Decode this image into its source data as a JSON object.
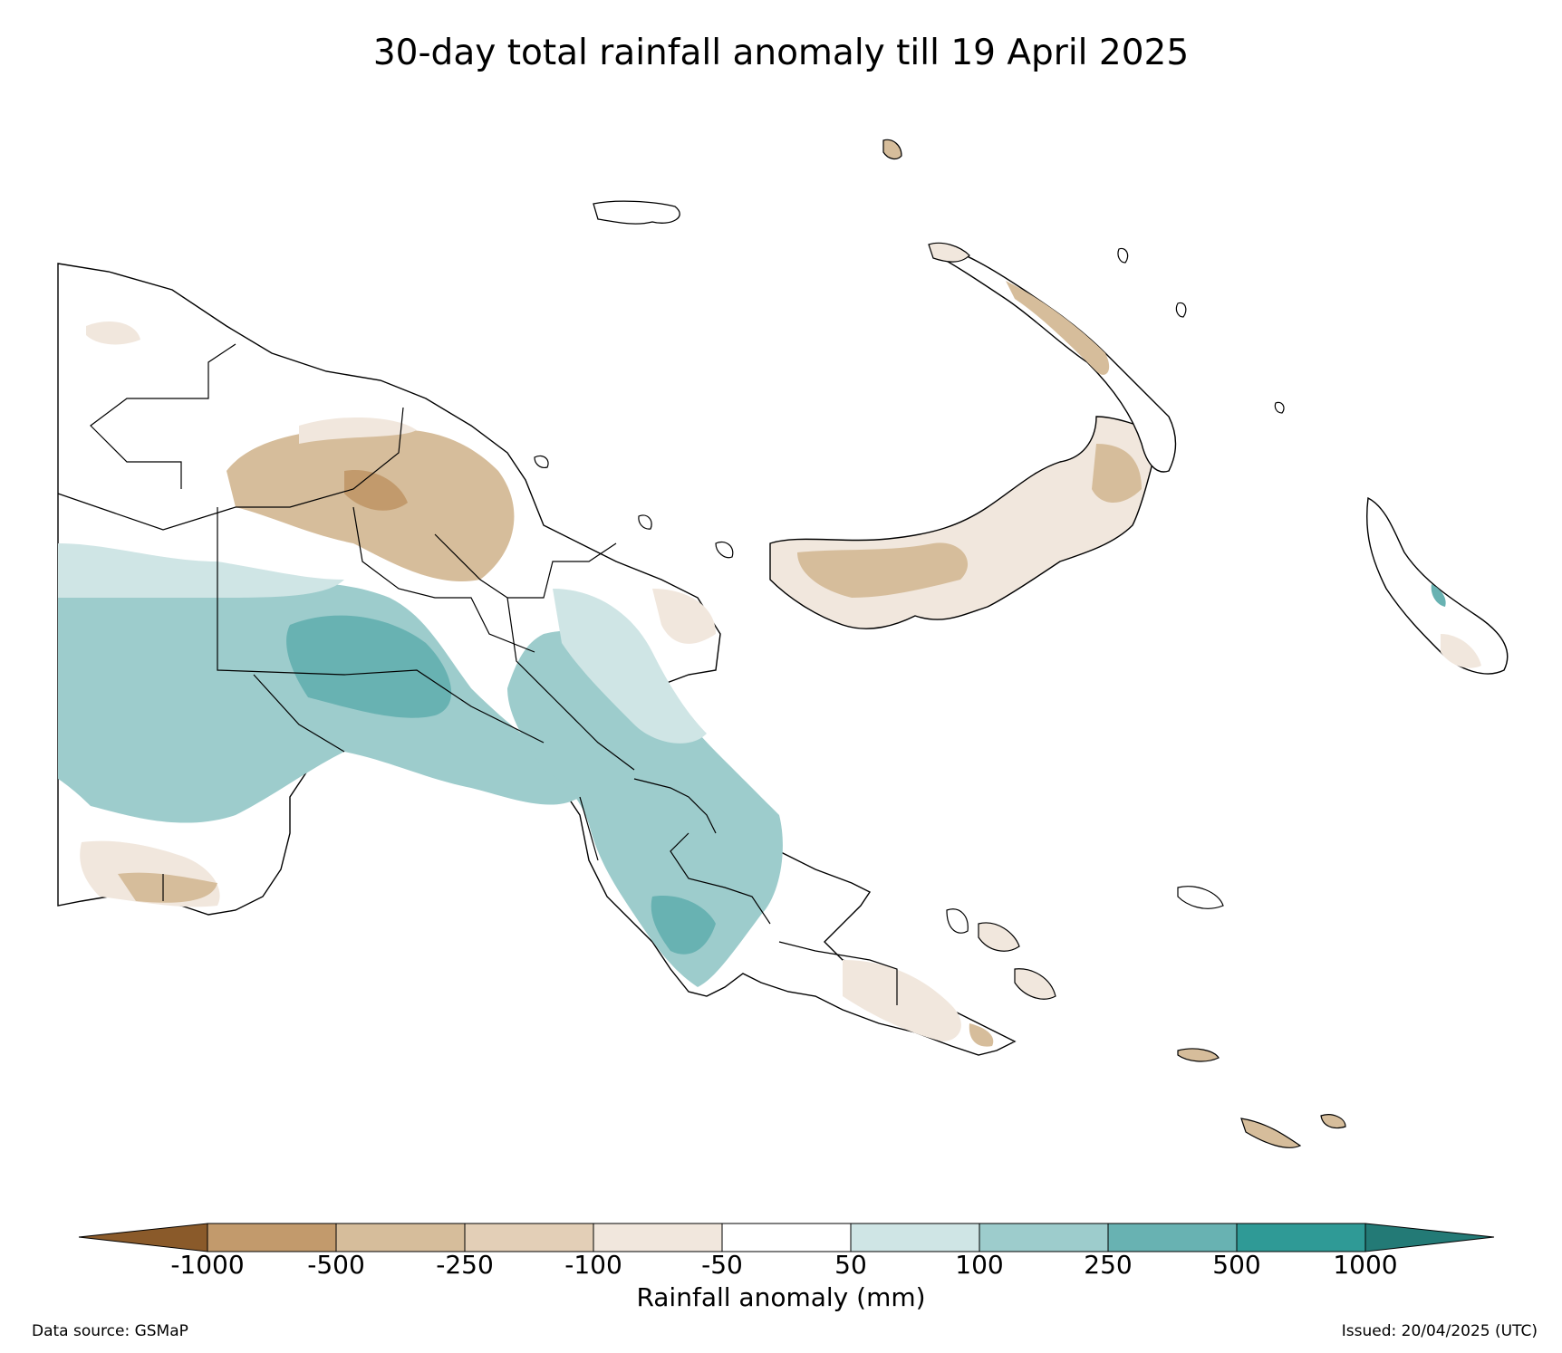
{
  "title": "30-day total rainfall anomaly till 19 April 2025",
  "colorbar": {
    "label": "Rainfall anomaly (mm)",
    "ticks": [
      "-1000",
      "-500",
      "-250",
      "-100",
      "-50",
      "50",
      "100",
      "250",
      "500",
      "1000"
    ],
    "colors": {
      "extend_low": "#8a5a2a",
      "lt_neg1000": "#a86f35",
      "neg1000_neg500": "#c29a6c",
      "neg500_neg250": "#d6bd9b",
      "neg250_neg100": "#e3cfb7",
      "neg100_neg50": "#f1e7dd",
      "neg50_50": "#ffffff",
      "p50_100": "#cfe5e5",
      "p100_250": "#9dcccc",
      "p250_500": "#68b2b2",
      "p500_1000": "#2f9a96",
      "extend_high": "#237a76"
    }
  },
  "footer": {
    "data_source": "Data source: GSMaP",
    "issued": "Issued: 20/04/2025 (UTC)"
  },
  "map": {
    "region": "Papua New Guinea",
    "land_fill": "#ffffff",
    "outline_color": "#000000"
  }
}
